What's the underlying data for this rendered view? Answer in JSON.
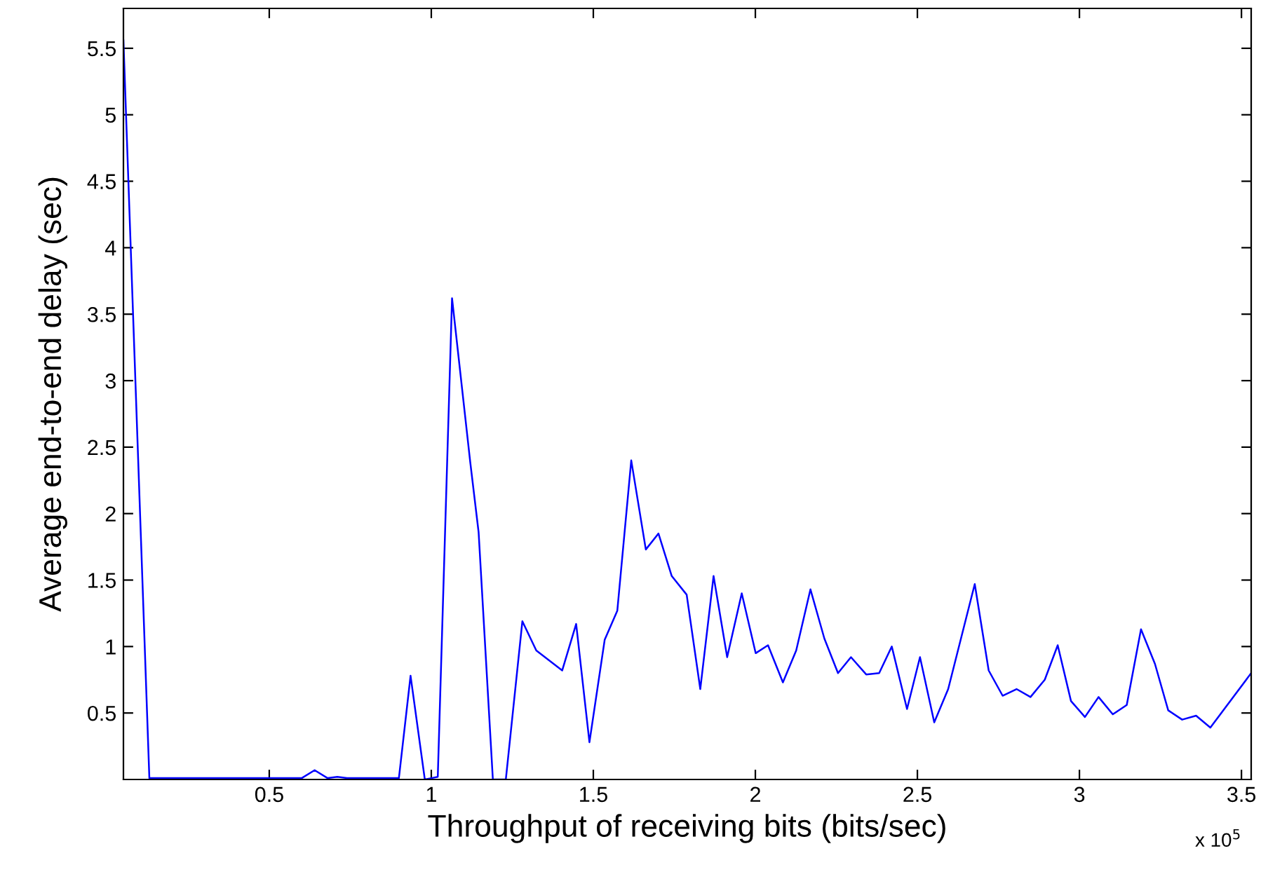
{
  "chart_data": {
    "type": "line",
    "xlabel": "Throughput of receiving bits (bits/sec)",
    "ylabel": "Average end-to-end delay (sec)",
    "annotations": [
      "x 10$^{5}$"
    ],
    "xlim": [
      0.05,
      3.53
    ],
    "ylim": [
      0,
      5.8
    ],
    "xticks": [
      0.5,
      1,
      1.5,
      2,
      2.5,
      3,
      3.5
    ],
    "yticks": [
      0.5,
      1,
      1.5,
      2,
      2.5,
      3,
      3.5,
      4,
      4.5,
      5,
      5.5
    ],
    "grid": false,
    "marker": "none",
    "line_style": "solid",
    "series": [
      {
        "color": "#0000ff",
        "x": [
          0.05,
          0.13,
          0.6,
          0.64,
          0.68,
          0.71,
          0.74,
          0.9,
          0.936,
          0.98,
          1.0,
          1.02,
          1.064,
          1.12,
          1.146,
          1.19,
          1.23,
          1.281,
          1.324,
          1.404,
          1.447,
          1.488,
          1.535,
          1.574,
          1.617,
          1.662,
          1.701,
          1.742,
          1.788,
          1.83,
          1.871,
          1.913,
          1.958,
          2.001,
          2.039,
          2.085,
          2.126,
          2.17,
          2.213,
          2.255,
          2.295,
          2.342,
          2.382,
          2.421,
          2.468,
          2.508,
          2.552,
          2.595,
          2.677,
          2.72,
          2.763,
          2.806,
          2.849,
          2.893,
          2.933,
          2.974,
          3.017,
          3.059,
          3.103,
          3.146,
          3.19,
          3.233,
          3.274,
          3.317,
          3.36,
          3.404,
          3.53
        ],
        "values": [
          5.56,
          0.01,
          0.01,
          0.07,
          0.01,
          0.02,
          0.01,
          0.01,
          0.78,
          0.0,
          0.01,
          0.02,
          3.62,
          2.39,
          1.86,
          0.0,
          0.0,
          1.19,
          0.97,
          0.82,
          1.17,
          0.28,
          1.05,
          1.27,
          2.4,
          1.73,
          1.85,
          1.53,
          1.39,
          0.68,
          1.53,
          0.92,
          1.4,
          0.95,
          1.01,
          0.73,
          0.97,
          1.43,
          1.06,
          0.8,
          0.92,
          0.79,
          0.8,
          1.0,
          0.53,
          0.92,
          0.43,
          0.68,
          1.47,
          0.82,
          0.63,
          0.68,
          0.62,
          0.75,
          1.01,
          0.59,
          0.47,
          0.62,
          0.49,
          0.56,
          1.13,
          0.87,
          0.52,
          0.45,
          0.48,
          0.39,
          0.8
        ]
      }
    ]
  }
}
